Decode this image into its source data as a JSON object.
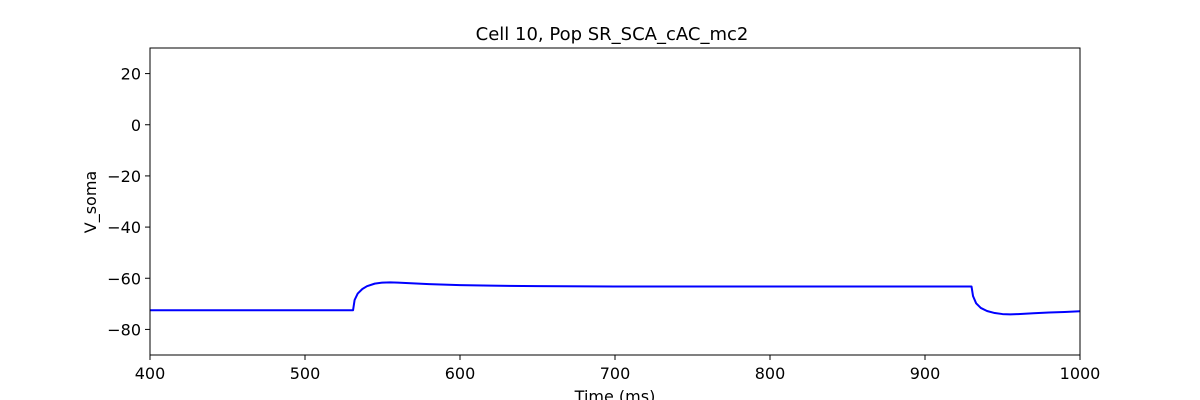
{
  "chart_data": {
    "type": "line",
    "title": "Cell 10, Pop SR_SCA_cAC_mc2",
    "xlabel": "Time (ms)",
    "ylabel": "V_soma",
    "xlim": [
      400,
      1000
    ],
    "ylim": [
      -90,
      30
    ],
    "xticks": [
      400,
      500,
      600,
      700,
      800,
      900,
      1000
    ],
    "yticks": [
      20,
      0,
      -20,
      -40,
      -60,
      -80
    ],
    "xtick_labels": [
      "400",
      "500",
      "600",
      "700",
      "800",
      "900",
      "1000"
    ],
    "ytick_labels": [
      "20",
      "0",
      "−20",
      "−40",
      "−60",
      "−80"
    ],
    "grid": false,
    "series": [
      {
        "color": "#0000ff",
        "x": [
          400,
          450,
          500,
          531,
          532,
          534,
          537,
          540,
          545,
          550,
          555,
          560,
          570,
          580,
          600,
          620,
          650,
          700,
          750,
          800,
          850,
          900,
          930,
          931,
          933,
          936,
          940,
          945,
          950,
          955,
          960,
          970,
          980,
          990,
          1000
        ],
        "y": [
          -72.5,
          -72.5,
          -72.5,
          -72.5,
          -68.5,
          -66.0,
          -64.2,
          -63.1,
          -62.1,
          -61.7,
          -61.6,
          -61.7,
          -62.0,
          -62.3,
          -62.7,
          -62.9,
          -63.1,
          -63.2,
          -63.2,
          -63.2,
          -63.2,
          -63.2,
          -63.2,
          -67.0,
          -69.8,
          -71.6,
          -72.8,
          -73.6,
          -74.0,
          -74.1,
          -74.0,
          -73.7,
          -73.4,
          -73.2,
          -72.9
        ]
      }
    ]
  }
}
